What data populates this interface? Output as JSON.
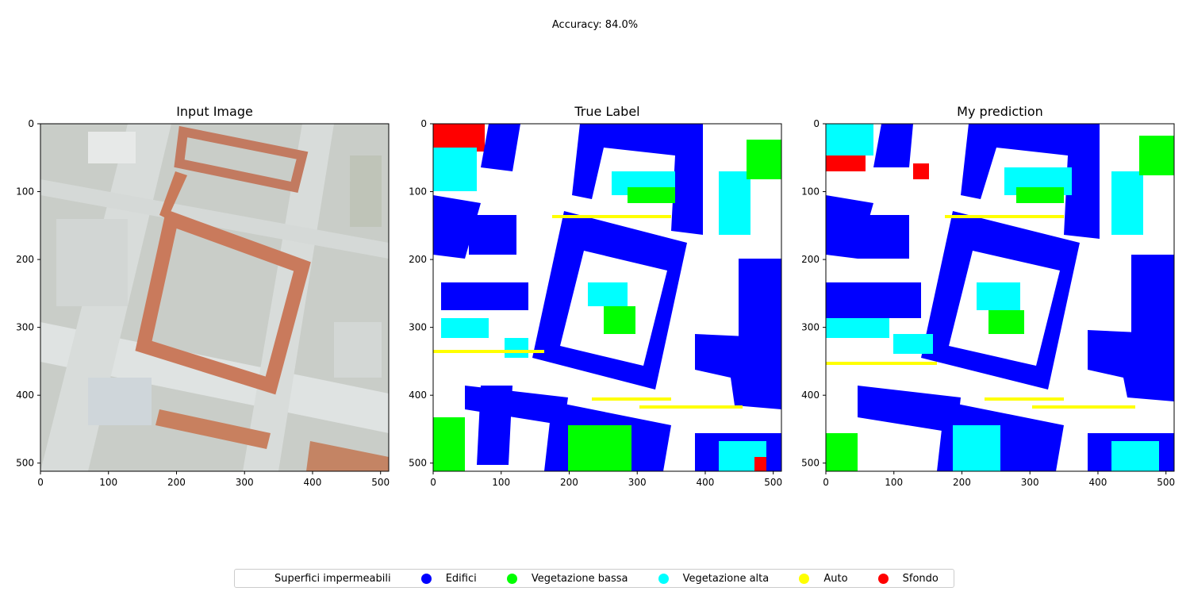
{
  "figure": {
    "suptitle": "Accuracy: 84.0%"
  },
  "panels": [
    {
      "title": "Input Image"
    },
    {
      "title": "True Label"
    },
    {
      "title": "My prediction"
    }
  ],
  "chart_data": {
    "type": "image",
    "xlim": [
      0,
      512
    ],
    "ylim": [
      512,
      0
    ],
    "xticks": [
      0,
      100,
      200,
      300,
      400,
      500
    ],
    "yticks": [
      0,
      100,
      200,
      300,
      400,
      500
    ],
    "xticklabels": [
      "0",
      "100",
      "200",
      "300",
      "400",
      "500"
    ],
    "yticklabels": [
      "0",
      "100",
      "200",
      "300",
      "400",
      "500"
    ],
    "legend_placement": "lower-center"
  },
  "legend": [
    {
      "label": "Superfici impermeabili",
      "color": "#ffffff"
    },
    {
      "label": "Edifici",
      "color": "#0000ff"
    },
    {
      "label": "Vegetazione bassa",
      "color": "#00ff00"
    },
    {
      "label": "Vegetazione alta",
      "color": "#00ffff"
    },
    {
      "label": "Auto",
      "color": "#ffff00"
    },
    {
      "label": "Sfondo",
      "color": "#ff0000"
    }
  ]
}
